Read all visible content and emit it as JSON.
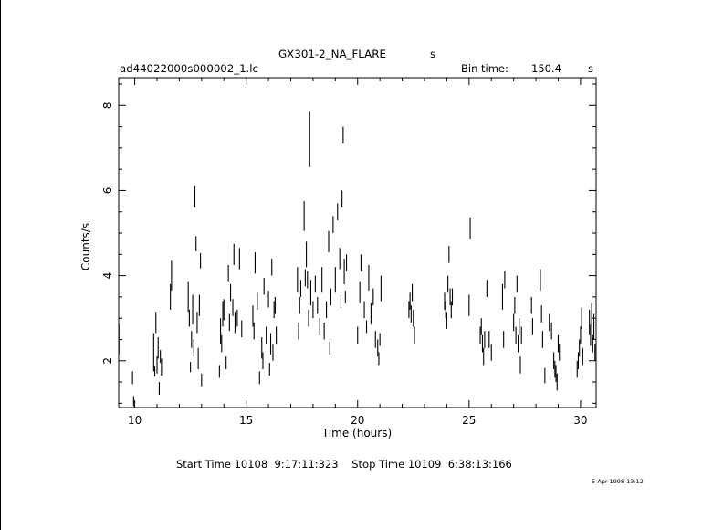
{
  "header": {
    "title": "GX301-2_NA_FLARE",
    "title_suffix": "s",
    "filename": "ad44022000s000002_1.lc",
    "bin_time_label": "Bin time:",
    "bin_time_value": "150.4",
    "bin_time_unit": "s"
  },
  "footer": {
    "start_stop": "Start Time 10108  9:17:11:323    Stop Time 10109  6:38:13:166",
    "timestamp": "5-Apr-1998 13:12"
  },
  "chart_data": {
    "type": "scatter",
    "error_bars": "vertical",
    "xlabel": "Time (hours)",
    "ylabel": "Counts/s",
    "xlim": [
      9.28,
      30.7
    ],
    "ylim": [
      0.9,
      8.65
    ],
    "x_ticks": [
      10,
      15,
      20,
      25,
      30
    ],
    "y_ticks": [
      2,
      4,
      6,
      8
    ],
    "grid": false,
    "points": [
      {
        "x": 9.29,
        "y": 2.5,
        "err": 0.35
      },
      {
        "x": 9.9,
        "y": 1.6,
        "err": 0.15
      },
      {
        "x": 9.95,
        "y": 1.05,
        "err": 0.12
      },
      {
        "x": 10.85,
        "y": 2.2,
        "err": 0.45
      },
      {
        "x": 10.9,
        "y": 1.75,
        "err": 0.12
      },
      {
        "x": 10.95,
        "y": 2.9,
        "err": 0.25
      },
      {
        "x": 11.0,
        "y": 1.9,
        "err": 0.2
      },
      {
        "x": 11.05,
        "y": 2.3,
        "err": 0.25
      },
      {
        "x": 11.1,
        "y": 1.35,
        "err": 0.15
      },
      {
        "x": 11.15,
        "y": 2.1,
        "err": 0.15
      },
      {
        "x": 11.2,
        "y": 1.85,
        "err": 0.2
      },
      {
        "x": 11.6,
        "y": 3.5,
        "err": 0.3
      },
      {
        "x": 11.65,
        "y": 4.0,
        "err": 0.35
      },
      {
        "x": 12.4,
        "y": 3.5,
        "err": 0.35
      },
      {
        "x": 12.45,
        "y": 3.0,
        "err": 0.2
      },
      {
        "x": 12.5,
        "y": 1.85,
        "err": 0.12
      },
      {
        "x": 12.55,
        "y": 2.5,
        "err": 0.2
      },
      {
        "x": 12.6,
        "y": 3.2,
        "err": 0.35
      },
      {
        "x": 12.65,
        "y": 2.3,
        "err": 0.2
      },
      {
        "x": 12.7,
        "y": 5.85,
        "err": 0.25
      },
      {
        "x": 12.75,
        "y": 4.75,
        "err": 0.18
      },
      {
        "x": 12.8,
        "y": 2.9,
        "err": 0.25
      },
      {
        "x": 12.85,
        "y": 2.05,
        "err": 0.25
      },
      {
        "x": 12.9,
        "y": 3.3,
        "err": 0.25
      },
      {
        "x": 12.95,
        "y": 4.35,
        "err": 0.18
      },
      {
        "x": 13.0,
        "y": 1.55,
        "err": 0.15
      },
      {
        "x": 13.8,
        "y": 1.75,
        "err": 0.15
      },
      {
        "x": 13.85,
        "y": 2.7,
        "err": 0.3
      },
      {
        "x": 13.9,
        "y": 2.4,
        "err": 0.2
      },
      {
        "x": 13.95,
        "y": 3.1,
        "err": 0.3
      },
      {
        "x": 14.0,
        "y": 3.2,
        "err": 0.25
      },
      {
        "x": 14.1,
        "y": 1.95,
        "err": 0.15
      },
      {
        "x": 14.2,
        "y": 4.05,
        "err": 0.2
      },
      {
        "x": 14.25,
        "y": 2.9,
        "err": 0.2
      },
      {
        "x": 14.3,
        "y": 3.6,
        "err": 0.2
      },
      {
        "x": 14.4,
        "y": 3.25,
        "err": 0.2
      },
      {
        "x": 14.45,
        "y": 4.5,
        "err": 0.25
      },
      {
        "x": 14.5,
        "y": 2.9,
        "err": 0.25
      },
      {
        "x": 14.6,
        "y": 3.0,
        "err": 0.2
      },
      {
        "x": 14.7,
        "y": 4.4,
        "err": 0.25
      },
      {
        "x": 14.8,
        "y": 2.75,
        "err": 0.2
      },
      {
        "x": 15.3,
        "y": 3.05,
        "err": 0.25
      },
      {
        "x": 15.35,
        "y": 2.7,
        "err": 0.2
      },
      {
        "x": 15.4,
        "y": 4.3,
        "err": 0.25
      },
      {
        "x": 15.5,
        "y": 3.4,
        "err": 0.2
      },
      {
        "x": 15.6,
        "y": 1.6,
        "err": 0.15
      },
      {
        "x": 15.7,
        "y": 2.3,
        "err": 0.25
      },
      {
        "x": 15.75,
        "y": 2.0,
        "err": 0.2
      },
      {
        "x": 15.8,
        "y": 3.75,
        "err": 0.2
      },
      {
        "x": 15.9,
        "y": 2.6,
        "err": 0.2
      },
      {
        "x": 16.0,
        "y": 3.45,
        "err": 0.2
      },
      {
        "x": 16.05,
        "y": 1.8,
        "err": 0.15
      },
      {
        "x": 16.1,
        "y": 2.4,
        "err": 0.25
      },
      {
        "x": 16.15,
        "y": 4.2,
        "err": 0.2
      },
      {
        "x": 16.2,
        "y": 2.2,
        "err": 0.2
      },
      {
        "x": 16.25,
        "y": 3.2,
        "err": 0.2
      },
      {
        "x": 16.3,
        "y": 3.3,
        "err": 0.2
      },
      {
        "x": 16.35,
        "y": 2.6,
        "err": 0.2
      },
      {
        "x": 17.3,
        "y": 3.9,
        "err": 0.3
      },
      {
        "x": 17.35,
        "y": 2.7,
        "err": 0.2
      },
      {
        "x": 17.4,
        "y": 3.3,
        "err": 0.2
      },
      {
        "x": 17.45,
        "y": 3.7,
        "err": 0.2
      },
      {
        "x": 17.6,
        "y": 5.4,
        "err": 0.35
      },
      {
        "x": 17.65,
        "y": 3.95,
        "err": 0.2
      },
      {
        "x": 17.7,
        "y": 4.5,
        "err": 0.3
      },
      {
        "x": 17.75,
        "y": 3.9,
        "err": 0.2
      },
      {
        "x": 17.8,
        "y": 3.0,
        "err": 0.2
      },
      {
        "x": 17.85,
        "y": 7.2,
        "err": 0.65
      },
      {
        "x": 17.9,
        "y": 3.6,
        "err": 0.3
      },
      {
        "x": 18.0,
        "y": 3.2,
        "err": 0.2
      },
      {
        "x": 18.1,
        "y": 3.8,
        "err": 0.2
      },
      {
        "x": 18.2,
        "y": 3.3,
        "err": 0.2
      },
      {
        "x": 18.3,
        "y": 2.8,
        "err": 0.2
      },
      {
        "x": 18.4,
        "y": 3.9,
        "err": 0.3
      },
      {
        "x": 18.5,
        "y": 2.7,
        "err": 0.2
      },
      {
        "x": 18.6,
        "y": 3.2,
        "err": 0.2
      },
      {
        "x": 18.7,
        "y": 4.8,
        "err": 0.25
      },
      {
        "x": 18.75,
        "y": 2.3,
        "err": 0.15
      },
      {
        "x": 18.8,
        "y": 3.5,
        "err": 0.2
      },
      {
        "x": 18.9,
        "y": 5.2,
        "err": 0.2
      },
      {
        "x": 19.0,
        "y": 3.9,
        "err": 0.3
      },
      {
        "x": 19.1,
        "y": 5.5,
        "err": 0.2
      },
      {
        "x": 19.2,
        "y": 4.4,
        "err": 0.25
      },
      {
        "x": 19.25,
        "y": 3.4,
        "err": 0.15
      },
      {
        "x": 19.3,
        "y": 5.8,
        "err": 0.2
      },
      {
        "x": 19.35,
        "y": 7.3,
        "err": 0.2
      },
      {
        "x": 19.4,
        "y": 4.1,
        "err": 0.3
      },
      {
        "x": 19.45,
        "y": 3.5,
        "err": 0.15
      },
      {
        "x": 19.5,
        "y": 4.3,
        "err": 0.2
      },
      {
        "x": 20.0,
        "y": 2.6,
        "err": 0.2
      },
      {
        "x": 20.1,
        "y": 3.6,
        "err": 0.25
      },
      {
        "x": 20.15,
        "y": 4.3,
        "err": 0.2
      },
      {
        "x": 20.3,
        "y": 3.2,
        "err": 0.2
      },
      {
        "x": 20.4,
        "y": 2.8,
        "err": 0.15
      },
      {
        "x": 20.5,
        "y": 3.95,
        "err": 0.3
      },
      {
        "x": 20.6,
        "y": 3.1,
        "err": 0.25
      },
      {
        "x": 20.7,
        "y": 3.5,
        "err": 0.2
      },
      {
        "x": 20.8,
        "y": 2.5,
        "err": 0.2
      },
      {
        "x": 20.9,
        "y": 2.3,
        "err": 0.2
      },
      {
        "x": 20.95,
        "y": 2.05,
        "err": 0.15
      },
      {
        "x": 21.0,
        "y": 2.5,
        "err": 0.15
      },
      {
        "x": 21.05,
        "y": 3.7,
        "err": 0.3
      },
      {
        "x": 22.3,
        "y": 3.2,
        "err": 0.2
      },
      {
        "x": 22.35,
        "y": 3.4,
        "err": 0.2
      },
      {
        "x": 22.4,
        "y": 3.1,
        "err": 0.2
      },
      {
        "x": 22.45,
        "y": 3.6,
        "err": 0.2
      },
      {
        "x": 22.5,
        "y": 3.0,
        "err": 0.2
      },
      {
        "x": 22.55,
        "y": 2.6,
        "err": 0.2
      },
      {
        "x": 23.9,
        "y": 3.4,
        "err": 0.2
      },
      {
        "x": 23.95,
        "y": 3.2,
        "err": 0.2
      },
      {
        "x": 24.0,
        "y": 2.95,
        "err": 0.2
      },
      {
        "x": 24.05,
        "y": 3.8,
        "err": 0.2
      },
      {
        "x": 24.1,
        "y": 4.5,
        "err": 0.2
      },
      {
        "x": 24.15,
        "y": 3.5,
        "err": 0.2
      },
      {
        "x": 24.2,
        "y": 3.2,
        "err": 0.2
      },
      {
        "x": 24.25,
        "y": 3.5,
        "err": 0.2
      },
      {
        "x": 25.0,
        "y": 3.3,
        "err": 0.25
      },
      {
        "x": 25.05,
        "y": 5.1,
        "err": 0.25
      },
      {
        "x": 25.5,
        "y": 2.6,
        "err": 0.2
      },
      {
        "x": 25.55,
        "y": 2.8,
        "err": 0.2
      },
      {
        "x": 25.6,
        "y": 2.4,
        "err": 0.2
      },
      {
        "x": 25.65,
        "y": 2.1,
        "err": 0.2
      },
      {
        "x": 25.7,
        "y": 2.5,
        "err": 0.2
      },
      {
        "x": 25.8,
        "y": 3.7,
        "err": 0.2
      },
      {
        "x": 25.9,
        "y": 2.5,
        "err": 0.2
      },
      {
        "x": 26.0,
        "y": 2.2,
        "err": 0.2
      },
      {
        "x": 26.5,
        "y": 3.5,
        "err": 0.3
      },
      {
        "x": 26.55,
        "y": 2.5,
        "err": 0.2
      },
      {
        "x": 26.6,
        "y": 3.9,
        "err": 0.2
      },
      {
        "x": 27.0,
        "y": 2.9,
        "err": 0.2
      },
      {
        "x": 27.05,
        "y": 3.3,
        "err": 0.2
      },
      {
        "x": 27.1,
        "y": 2.6,
        "err": 0.2
      },
      {
        "x": 27.15,
        "y": 3.8,
        "err": 0.2
      },
      {
        "x": 27.2,
        "y": 2.4,
        "err": 0.2
      },
      {
        "x": 27.25,
        "y": 2.8,
        "err": 0.2
      },
      {
        "x": 27.3,
        "y": 1.9,
        "err": 0.2
      },
      {
        "x": 27.35,
        "y": 2.6,
        "err": 0.2
      },
      {
        "x": 27.8,
        "y": 3.3,
        "err": 0.2
      },
      {
        "x": 27.85,
        "y": 2.8,
        "err": 0.2
      },
      {
        "x": 28.2,
        "y": 3.9,
        "err": 0.25
      },
      {
        "x": 28.25,
        "y": 3.1,
        "err": 0.2
      },
      {
        "x": 28.3,
        "y": 2.5,
        "err": 0.2
      },
      {
        "x": 28.4,
        "y": 1.65,
        "err": 0.18
      },
      {
        "x": 28.6,
        "y": 2.9,
        "err": 0.2
      },
      {
        "x": 28.7,
        "y": 2.7,
        "err": 0.2
      },
      {
        "x": 28.8,
        "y": 2.0,
        "err": 0.2
      },
      {
        "x": 28.85,
        "y": 1.8,
        "err": 0.2
      },
      {
        "x": 28.9,
        "y": 1.7,
        "err": 0.2
      },
      {
        "x": 28.95,
        "y": 1.5,
        "err": 0.2
      },
      {
        "x": 29.0,
        "y": 2.4,
        "err": 0.2
      },
      {
        "x": 29.05,
        "y": 2.2,
        "err": 0.2
      },
      {
        "x": 29.85,
        "y": 1.8,
        "err": 0.2
      },
      {
        "x": 29.9,
        "y": 2.0,
        "err": 0.2
      },
      {
        "x": 29.95,
        "y": 2.3,
        "err": 0.2
      },
      {
        "x": 30.0,
        "y": 2.6,
        "err": 0.2
      },
      {
        "x": 30.05,
        "y": 3.0,
        "err": 0.25
      },
      {
        "x": 30.1,
        "y": 2.1,
        "err": 0.2
      },
      {
        "x": 30.4,
        "y": 2.9,
        "err": 0.3
      },
      {
        "x": 30.45,
        "y": 2.6,
        "err": 0.25
      },
      {
        "x": 30.5,
        "y": 3.1,
        "err": 0.25
      },
      {
        "x": 30.55,
        "y": 2.4,
        "err": 0.2
      },
      {
        "x": 30.6,
        "y": 2.8,
        "err": 0.3
      },
      {
        "x": 30.65,
        "y": 2.2,
        "err": 0.2
      }
    ]
  }
}
